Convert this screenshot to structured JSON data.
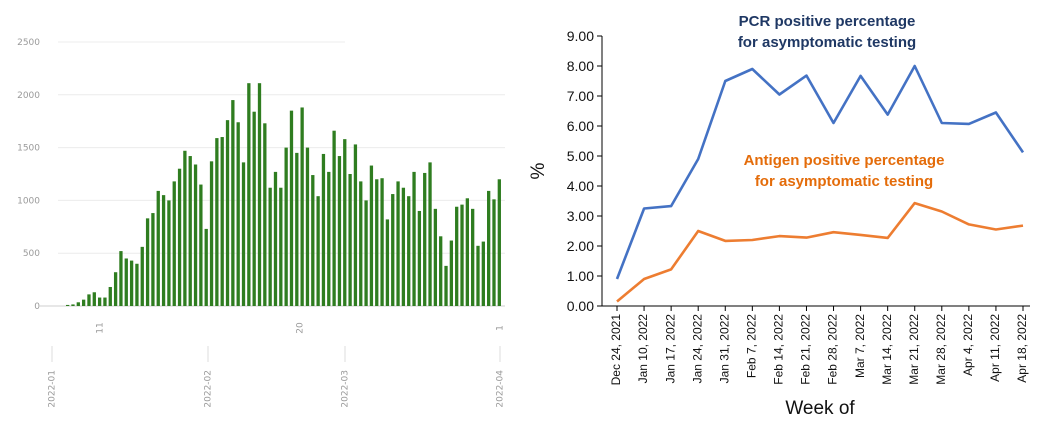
{
  "chart_data": [
    {
      "type": "bar",
      "title": "",
      "xlabel": "",
      "ylabel": "",
      "ylim": [
        0,
        2500
      ],
      "yticks": [
        "0",
        "500",
        "1000",
        "1500",
        "2000",
        "2500"
      ],
      "xticks": [
        "2022-01",
        "2022-02",
        "2022-03",
        "2022-04"
      ],
      "inline_labels": [
        "11",
        "20",
        "1"
      ],
      "grid": true,
      "bar_color": "#2f7d20",
      "values": [
        10,
        15,
        35,
        60,
        110,
        130,
        80,
        80,
        180,
        320,
        520,
        450,
        430,
        400,
        560,
        830,
        880,
        1090,
        1050,
        1000,
        1180,
        1300,
        1470,
        1420,
        1340,
        1150,
        730,
        1370,
        1590,
        1600,
        1760,
        1950,
        1740,
        1360,
        2110,
        1840,
        2110,
        1730,
        1120,
        1270,
        1120,
        1500,
        1850,
        1450,
        1880,
        1500,
        1240,
        1040,
        1440,
        1270,
        1660,
        1420,
        1580,
        1250,
        1530,
        1180,
        1000,
        1330,
        1200,
        1210,
        820,
        1060,
        1180,
        1120,
        1040,
        1270,
        900,
        1260,
        1360,
        920,
        660,
        380,
        620,
        940,
        960,
        1020,
        920,
        570,
        610,
        1090,
        1010,
        1200
      ]
    },
    {
      "type": "line",
      "xlabel": "Week of",
      "ylabel": "%",
      "ylim": [
        0,
        9
      ],
      "yticks": [
        "0.00",
        "1.00",
        "2.00",
        "3.00",
        "4.00",
        "5.00",
        "6.00",
        "7.00",
        "8.00",
        "9.00"
      ],
      "categories": [
        "Dec 24, 2021",
        "Jan 10, 2022",
        "Jan 17, 2022",
        "Jan 24, 2022",
        "Jan 31, 2022",
        "Feb 7, 2022",
        "Feb 14, 2022",
        "Feb 21, 2022",
        "Feb 28, 2022",
        "Mar 7, 2022",
        "Mar 14, 2022",
        "Mar 21, 2022",
        "Mar 28, 2022",
        "Apr 4, 2022",
        "Apr 11, 2022",
        "Apr 18, 2022"
      ],
      "series": [
        {
          "name": "PCR positive percentage for asymptomatic testing",
          "name_lines": [
            "PCR positive percentage",
            "for asymptomatic testing"
          ],
          "color": "#4472c4",
          "label_color": "#1f3864",
          "values": [
            0.9,
            3.25,
            3.33,
            4.9,
            7.5,
            7.9,
            7.05,
            7.68,
            6.1,
            7.67,
            6.38,
            8.0,
            6.1,
            6.07,
            6.45,
            5.12
          ]
        },
        {
          "name": "Antigen positive percentage for asymptomatic testing",
          "name_lines": [
            "Antigen positive percentage",
            "for asymptomatic testing"
          ],
          "color": "#ed7d31",
          "label_color": "#e46c0a",
          "values": [
            0.15,
            0.9,
            1.22,
            2.5,
            2.17,
            2.2,
            2.33,
            2.28,
            2.46,
            2.37,
            2.27,
            3.43,
            3.15,
            2.72,
            2.55,
            2.68
          ]
        }
      ]
    }
  ]
}
